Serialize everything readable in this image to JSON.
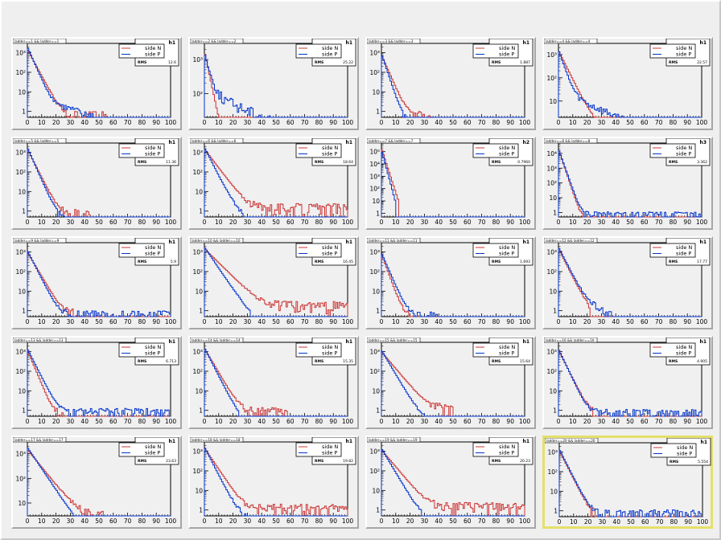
{
  "canvas": {
    "selected_pad_index": 19,
    "selected_color": "#e4e06a"
  },
  "colors": {
    "side_N": "#cc3333",
    "side_P": "#0033cc",
    "frame": "#000000",
    "pad_bg": "#f0f0f0"
  },
  "chart_data": [
    {
      "type": "line",
      "title": "ladder==1 && ladder==1",
      "stats_name": "h1",
      "rms_label": "RMS",
      "rms_value": "12.6",
      "legend": [
        "side N",
        "side P"
      ],
      "xlim": [
        0,
        100
      ],
      "ylim_log": [
        0.5,
        3000
      ],
      "ytick_labels": [
        "1",
        "10",
        "10²",
        "10³"
      ],
      "xtick_labels": [
        "0",
        "10",
        "20",
        "30",
        "40",
        "50",
        "60",
        "70",
        "80",
        "90",
        "100"
      ],
      "log_y": true,
      "profile": {
        "n_peak": 1500,
        "n_decay": 3.2,
        "n_floor": 0.5,
        "n_cut": 55,
        "p_peak": 2000,
        "p_decay": 2.6,
        "p_floor": 6,
        "p_slope": 0.005
      }
    },
    {
      "type": "line",
      "title": "ladder==2 && ladder==2",
      "stats_name": "h1",
      "rms_label": "RMS",
      "rms_value": "25.22",
      "legend": [
        "side N",
        "side P"
      ],
      "xlim": [
        0,
        100
      ],
      "ylim_log": [
        20,
        3000
      ],
      "ytick_labels": [
        "10²",
        "10³"
      ],
      "xtick_labels": [
        "0",
        "10",
        "20",
        "30",
        "40",
        "50",
        "60",
        "70",
        "80",
        "90",
        "100"
      ],
      "log_y": true,
      "profile": {
        "n_peak": 1800,
        "n_decay": 2.2,
        "n_floor": 0.5,
        "n_cut": 30,
        "p_peak": 1500,
        "p_decay": 2.5,
        "p_floor": 110,
        "p_slope": 0.004
      }
    },
    {
      "type": "line",
      "title": "ladder==3 && ladder==3",
      "stats_name": "h1",
      "rms_label": "RMS",
      "rms_value": "1.887",
      "legend": [
        "side N",
        "side P"
      ],
      "xlim": [
        0,
        100
      ],
      "ylim_log": [
        0.5,
        3000
      ],
      "ytick_labels": [
        "1",
        "10",
        "10²",
        "10³"
      ],
      "xtick_labels": [
        "0",
        "10",
        "20",
        "30",
        "40",
        "50",
        "60",
        "70",
        "80",
        "90",
        "100"
      ],
      "log_y": true,
      "profile": {
        "n_peak": 800,
        "n_decay": 2.6,
        "n_floor": 0.5,
        "n_cut": 40,
        "p_peak": 900,
        "p_decay": 2.0,
        "p_floor": 0.4,
        "p_cut": 20
      }
    },
    {
      "type": "line",
      "title": "ladder==4 && ladder==4",
      "stats_name": "h1",
      "rms_label": "RMS",
      "rms_value": "22.57",
      "legend": [
        "side N",
        "side P"
      ],
      "xlim": [
        0,
        100
      ],
      "ylim_log": [
        2,
        3000
      ],
      "ytick_labels": [
        "10",
        "10²",
        "10³"
      ],
      "xtick_labels": [
        "0",
        "10",
        "20",
        "30",
        "40",
        "50",
        "60",
        "70",
        "80",
        "90",
        "100"
      ],
      "log_y": true,
      "profile": {
        "n_peak": 1500,
        "n_decay": 3.5,
        "n_floor": 0.8,
        "n_cut": 25,
        "p_peak": 1600,
        "p_decay": 2.4,
        "p_floor": 25,
        "p_slope": 0.006
      }
    },
    {
      "type": "line",
      "title": "ladder==5 && ladder==5",
      "stats_name": "h1",
      "rms_label": "RMS",
      "rms_value": "11.36",
      "legend": [
        "side N",
        "side P"
      ],
      "xlim": [
        0,
        100
      ],
      "ylim_log": [
        0.5,
        3000
      ],
      "ytick_labels": [
        "1",
        "10",
        "10²",
        "10³"
      ],
      "xtick_labels": [
        "0",
        "10",
        "20",
        "30",
        "40",
        "50",
        "60",
        "70",
        "80",
        "90",
        "100"
      ],
      "log_y": true,
      "profile": {
        "n_peak": 1500,
        "n_decay": 3.0,
        "n_floor": 0.6,
        "n_cut": 45,
        "p_peak": 1800,
        "p_decay": 2.6,
        "p_floor": 3,
        "p_slope": 0.008
      }
    },
    {
      "type": "line",
      "title": "ladder==6 && ladder==6",
      "stats_name": "h1",
      "rms_label": "RMS",
      "rms_value": "18.64",
      "legend": [
        "side N",
        "side P"
      ],
      "xlim": [
        0,
        100
      ],
      "ylim_log": [
        0.5,
        3000
      ],
      "ytick_labels": [
        "1",
        "10",
        "10²",
        "10³"
      ],
      "xtick_labels": [
        "0",
        "10",
        "20",
        "30",
        "40",
        "50",
        "60",
        "70",
        "80",
        "90",
        "100"
      ],
      "log_y": true,
      "profile": {
        "n_peak": 1500,
        "n_decay": 4.5,
        "n_floor": 1.2,
        "n_cut": 100,
        "p_peak": 1800,
        "p_decay": 3.0,
        "p_floor": 7,
        "p_slope": 0.009
      }
    },
    {
      "type": "line",
      "title": "ladder==7 && ladder==7",
      "stats_name": "h2",
      "rms_label": "RMS",
      "rms_value": "0.7960",
      "legend": [
        "side N",
        "side P"
      ],
      "xlim": [
        0,
        100
      ],
      "ylim_log": [
        0.5,
        500000
      ],
      "ytick_labels": [
        "1",
        "10",
        "10²",
        "10³",
        "10⁴",
        "10⁵"
      ],
      "xtick_labels": [
        "0",
        "10",
        "20",
        "30",
        "40",
        "50",
        "60",
        "70",
        "80",
        "90",
        "100"
      ],
      "log_y": true,
      "profile": {
        "n_peak": 200000,
        "n_decay": 1.2,
        "n_floor": 0.3,
        "n_cut": 12,
        "p_peak": 150000,
        "p_decay": 1.0,
        "p_floor": 0.5,
        "p_cut": 10
      }
    },
    {
      "type": "line",
      "title": "ladder==8 && ladder==8",
      "stats_name": "h3",
      "rms_label": "RMS",
      "rms_value": "3.362",
      "legend": [
        "side N",
        "side P"
      ],
      "xlim": [
        0,
        100
      ],
      "ylim_log": [
        0.5,
        50000
      ],
      "ytick_labels": [
        "1",
        "10",
        "10²",
        "10³",
        "10⁴"
      ],
      "xtick_labels": [
        "0",
        "10",
        "20",
        "30",
        "40",
        "50",
        "60",
        "70",
        "80",
        "90",
        "100"
      ],
      "log_y": true,
      "profile": {
        "n_peak": 20000,
        "n_decay": 1.5,
        "n_floor": 0.4,
        "n_cut": 18,
        "p_peak": 20000,
        "p_decay": 1.6,
        "p_floor": 0.8,
        "p_cut": 100
      }
    },
    {
      "type": "line",
      "title": "ladder==9 && ladder==9",
      "stats_name": "h1",
      "rms_label": "RMS",
      "rms_value": "5.9",
      "legend": [
        "side N",
        "side P"
      ],
      "xlim": [
        0,
        100
      ],
      "ylim_log": [
        0.5,
        3000
      ],
      "ytick_labels": [
        "1",
        "10",
        "10²",
        "10³"
      ],
      "xtick_labels": [
        "0",
        "10",
        "20",
        "30",
        "40",
        "50",
        "60",
        "70",
        "80",
        "90",
        "100"
      ],
      "log_y": true,
      "profile": {
        "n_peak": 1000,
        "n_decay": 3.5,
        "n_floor": 0.6,
        "n_cut": 35,
        "p_peak": 1200,
        "p_decay": 3.0,
        "p_floor": 0.7,
        "p_cut": 100
      }
    },
    {
      "type": "line",
      "title": "ladder==10 && ladder==10",
      "stats_name": "h1",
      "rms_label": "RMS",
      "rms_value": "16.45",
      "legend": [
        "side N",
        "side P"
      ],
      "xlim": [
        0,
        100
      ],
      "ylim_log": [
        0.5,
        3000
      ],
      "ytick_labels": [
        "1",
        "10",
        "10²",
        "10³"
      ],
      "xtick_labels": [
        "0",
        "10",
        "20",
        "30",
        "40",
        "50",
        "60",
        "70",
        "80",
        "90",
        "100"
      ],
      "log_y": true,
      "profile": {
        "n_peak": 1500,
        "n_decay": 6,
        "n_floor": 1.5,
        "n_cut": 100,
        "p_peak": 1800,
        "p_decay": 4,
        "p_floor": 9,
        "p_slope": 0.01
      }
    },
    {
      "type": "line",
      "title": "ladder==11 && ladder==11",
      "stats_name": "h1",
      "rms_label": "RMS",
      "rms_value": "1.693",
      "legend": [
        "side N",
        "side P"
      ],
      "xlim": [
        0,
        100
      ],
      "ylim_log": [
        0.5,
        3000
      ],
      "ytick_labels": [
        "1",
        "10",
        "10²",
        "10³"
      ],
      "xtick_labels": [
        "0",
        "10",
        "20",
        "30",
        "40",
        "50",
        "60",
        "70",
        "80",
        "90",
        "100"
      ],
      "log_y": true,
      "profile": {
        "n_peak": 800,
        "n_decay": 2.2,
        "n_floor": 0.5,
        "n_cut": 20,
        "p_peak": 900,
        "p_decay": 2.6,
        "p_floor": 0.7,
        "p_cut": 40
      }
    },
    {
      "type": "line",
      "title": "ladder==12 && ladder==12",
      "stats_name": "h1",
      "rms_label": "RMS",
      "rms_value": "17.77",
      "legend": [
        "side N",
        "side P"
      ],
      "xlim": [
        0,
        100
      ],
      "ylim_log": [
        0.5,
        3000
      ],
      "ytick_labels": [
        "1",
        "10",
        "10²",
        "10³"
      ],
      "xtick_labels": [
        "0",
        "10",
        "20",
        "30",
        "40",
        "50",
        "60",
        "70",
        "80",
        "90",
        "100"
      ],
      "log_y": true,
      "profile": {
        "n_peak": 1500,
        "n_decay": 3.0,
        "n_floor": 0.6,
        "n_cut": 22,
        "p_peak": 1800,
        "p_decay": 3.0,
        "p_floor": 12,
        "p_slope": 0.008
      }
    },
    {
      "type": "line",
      "title": "ladder==13 && ladder==13",
      "stats_name": "h1",
      "rms_label": "RMS",
      "rms_value": "6.713",
      "legend": [
        "side N",
        "side P"
      ],
      "xlim": [
        0,
        100
      ],
      "ylim_log": [
        0.5,
        3000
      ],
      "ytick_labels": [
        "1",
        "10",
        "10²",
        "10³"
      ],
      "xtick_labels": [
        "0",
        "10",
        "20",
        "30",
        "40",
        "50",
        "60",
        "70",
        "80",
        "90",
        "100"
      ],
      "log_y": true,
      "profile": {
        "n_peak": 1200,
        "n_decay": 2.5,
        "n_floor": 0.5,
        "n_cut": 30,
        "p_peak": 1400,
        "p_decay": 3.0,
        "p_floor": 0.9,
        "p_cut": 100
      }
    },
    {
      "type": "line",
      "title": "ladder==14 && ladder==14",
      "stats_name": "h1",
      "rms_label": "RMS",
      "rms_value": "15.35",
      "legend": [
        "side N",
        "side P"
      ],
      "xlim": [
        0,
        100
      ],
      "ylim_log": [
        0.5,
        3000
      ],
      "ytick_labels": [
        "1",
        "10",
        "10²",
        "10³"
      ],
      "xtick_labels": [
        "0",
        "10",
        "20",
        "30",
        "40",
        "50",
        "60",
        "70",
        "80",
        "90",
        "100"
      ],
      "log_y": true,
      "profile": {
        "n_peak": 1500,
        "n_decay": 3.5,
        "n_floor": 0.7,
        "n_cut": 60,
        "p_peak": 1600,
        "p_decay": 3.0,
        "p_floor": 2.5,
        "p_slope": 0.008
      }
    },
    {
      "type": "line",
      "title": "ladder==15 && ladder==15",
      "stats_name": "h1",
      "rms_label": "RMS",
      "rms_value": "15.64",
      "legend": [
        "side N",
        "side P"
      ],
      "xlim": [
        0,
        100
      ],
      "ylim_log": [
        0.5,
        3000
      ],
      "ytick_labels": [
        "1",
        "10",
        "10²",
        "10³"
      ],
      "xtick_labels": [
        "0",
        "10",
        "20",
        "30",
        "40",
        "50",
        "60",
        "70",
        "80",
        "90",
        "100"
      ],
      "log_y": true,
      "profile": {
        "n_peak": 1000,
        "n_decay": 5,
        "n_floor": 1.0,
        "n_cut": 50,
        "p_peak": 1200,
        "p_decay": 3.5,
        "p_floor": 3,
        "p_slope": 0.008
      }
    },
    {
      "type": "line",
      "title": "ladder==16 && ladder==16",
      "stats_name": "h1",
      "rms_label": "RMS",
      "rms_value": "4.905",
      "legend": [
        "side N",
        "side P"
      ],
      "xlim": [
        0,
        100
      ],
      "ylim_log": [
        0.5,
        3000
      ],
      "ytick_labels": [
        "1",
        "10",
        "10²",
        "10³"
      ],
      "xtick_labels": [
        "0",
        "10",
        "20",
        "30",
        "40",
        "50",
        "60",
        "70",
        "80",
        "90",
        "100"
      ],
      "log_y": true,
      "profile": {
        "n_peak": 1200,
        "n_decay": 3.0,
        "n_floor": 0.5,
        "n_cut": 25,
        "p_peak": 1400,
        "p_decay": 2.8,
        "p_floor": 0.8,
        "p_cut": 100
      }
    },
    {
      "type": "line",
      "title": "ladder==17 && ladder==17",
      "stats_name": "h1",
      "rms_label": "RMS",
      "rms_value": "23.63",
      "legend": [
        "side N",
        "side P"
      ],
      "xlim": [
        0,
        100
      ],
      "ylim_log": [
        3,
        3000
      ],
      "ytick_labels": [
        "10",
        "10²",
        "10³"
      ],
      "xtick_labels": [
        "0",
        "10",
        "20",
        "30",
        "40",
        "50",
        "60",
        "70",
        "80",
        "90",
        "100"
      ],
      "log_y": true,
      "profile": {
        "n_peak": 1500,
        "n_decay": 6,
        "n_floor": 2.5,
        "n_cut": 55,
        "p_peak": 1800,
        "p_decay": 5,
        "p_floor": 20,
        "p_slope": 0.012
      }
    },
    {
      "type": "line",
      "title": "ladder==18 && ladder==18",
      "stats_name": "h1",
      "rms_label": "RMS",
      "rms_value": "19.82",
      "legend": [
        "side N",
        "side P"
      ],
      "xlim": [
        0,
        100
      ],
      "ylim_log": [
        0.5,
        3000
      ],
      "ytick_labels": [
        "1",
        "10",
        "10²",
        "10³"
      ],
      "xtick_labels": [
        "0",
        "10",
        "20",
        "30",
        "40",
        "50",
        "60",
        "70",
        "80",
        "90",
        "100"
      ],
      "log_y": true,
      "profile": {
        "n_peak": 1500,
        "n_decay": 4,
        "n_floor": 1.0,
        "n_cut": 100,
        "p_peak": 1700,
        "p_decay": 3.0,
        "p_floor": 7,
        "p_slope": 0.01
      }
    },
    {
      "type": "line",
      "title": "ladder==19 && ladder==19",
      "stats_name": "h1",
      "rms_label": "RMS",
      "rms_value": "20.23",
      "legend": [
        "side N",
        "side P"
      ],
      "xlim": [
        0,
        100
      ],
      "ylim_log": [
        0.5,
        3000
      ],
      "ytick_labels": [
        "1",
        "10",
        "10²",
        "10³"
      ],
      "xtick_labels": [
        "0",
        "10",
        "20",
        "30",
        "40",
        "50",
        "60",
        "70",
        "80",
        "90",
        "100"
      ],
      "log_y": true,
      "profile": {
        "n_peak": 1200,
        "n_decay": 5,
        "n_floor": 1.2,
        "n_cut": 100,
        "p_peak": 1400,
        "p_decay": 3.5,
        "p_floor": 6,
        "p_slope": 0.01
      }
    },
    {
      "type": "line",
      "title": "ladder==20 && ladder==20",
      "stats_name": "h1",
      "rms_label": "RMS",
      "rms_value": "5.554",
      "legend": [
        "side N",
        "side P"
      ],
      "xlim": [
        0,
        100
      ],
      "ylim_log": [
        0.5,
        3000
      ],
      "ytick_labels": [
        "1",
        "10",
        "10²",
        "10³"
      ],
      "xtick_labels": [
        "0",
        "10",
        "20",
        "30",
        "40",
        "50",
        "60",
        "70",
        "80",
        "90",
        "100"
      ],
      "log_y": true,
      "profile": {
        "n_peak": 1200,
        "n_decay": 3.0,
        "n_floor": 0.5,
        "n_cut": 25,
        "p_peak": 1400,
        "p_decay": 3.0,
        "p_floor": 0.8,
        "p_cut": 100
      }
    }
  ]
}
